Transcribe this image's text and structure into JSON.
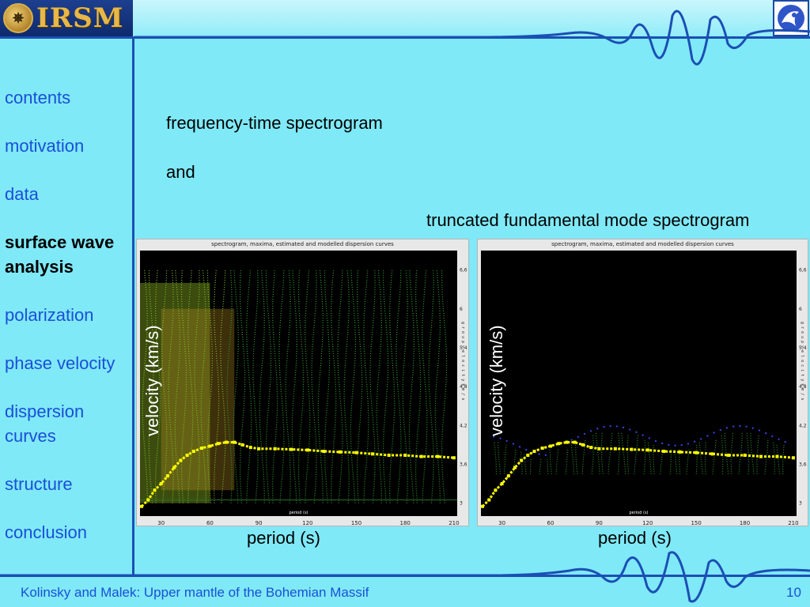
{
  "header": {
    "logo_text": "IRSM",
    "emblem_glyph": "✵",
    "right_logo_icon": "institute-logo-icon"
  },
  "sidebar": {
    "items": [
      {
        "label": "contents",
        "active": false
      },
      {
        "label": "motivation",
        "active": false
      },
      {
        "label": "data",
        "active": false
      },
      {
        "label": "surface wave analysis",
        "active": true
      },
      {
        "label": "polarization",
        "active": false
      },
      {
        "label": "phase velocity",
        "active": false
      },
      {
        "label": "dispersion curves",
        "active": false
      },
      {
        "label": "structure",
        "active": false
      },
      {
        "label": "conclusion",
        "active": false
      }
    ]
  },
  "main": {
    "line1": "frequency-time spectrogram",
    "line2": "and",
    "line3": "truncated fundamental mode spectrogram"
  },
  "plots": {
    "left": {
      "title": "spectrogram, maxima, estimated and modelled dispersion curves",
      "xlabel_small": "period (s)",
      "ylabel_small": "g r o u p   v e l o c i t y   k m / s",
      "velocity_label": "velocity (km/s)",
      "period_label": "period (s)"
    },
    "right": {
      "title": "spectrogram, maxima, estimated and modelled dispersion curves",
      "xlabel_small": "period (s)",
      "ylabel_small": "g r o u p   v e l o c i t y   k m / s",
      "velocity_label": "velocity (km/s)",
      "period_label": "period (s)"
    }
  },
  "chart_data": {
    "type": "scatter",
    "x_ticks": [
      "30",
      "60",
      "90",
      "120",
      "150",
      "180",
      "210"
    ],
    "y_ticks": [
      "3",
      "3,6",
      "4,2",
      "4,8",
      "5,4",
      "6",
      "6,6"
    ],
    "xlim": [
      17,
      212
    ],
    "ylim": [
      2.8,
      6.9
    ],
    "series": [
      {
        "color": "#ffff00",
        "x": [
          18,
          22,
          26,
          30,
          34,
          38,
          42,
          46,
          50,
          55,
          60,
          65,
          70,
          75,
          80,
          85,
          90,
          100,
          110,
          120,
          130,
          140,
          150,
          160,
          170,
          180,
          190,
          200,
          210
        ],
        "y": [
          2.95,
          3.05,
          3.2,
          3.3,
          3.42,
          3.55,
          3.66,
          3.74,
          3.8,
          3.85,
          3.88,
          3.92,
          3.94,
          3.94,
          3.9,
          3.86,
          3.84,
          3.84,
          3.83,
          3.82,
          3.8,
          3.79,
          3.78,
          3.76,
          3.74,
          3.74,
          3.72,
          3.72,
          3.7
        ]
      }
    ]
  },
  "footer": {
    "left": "Kolinsky and Malek: Upper mantle of the Bohemian Massif",
    "page_number": "10"
  },
  "colors": {
    "background": "#7fe9f7",
    "accent": "#1b4fb4",
    "nav_link": "#1a4fd8",
    "curve": "#ffff00"
  }
}
